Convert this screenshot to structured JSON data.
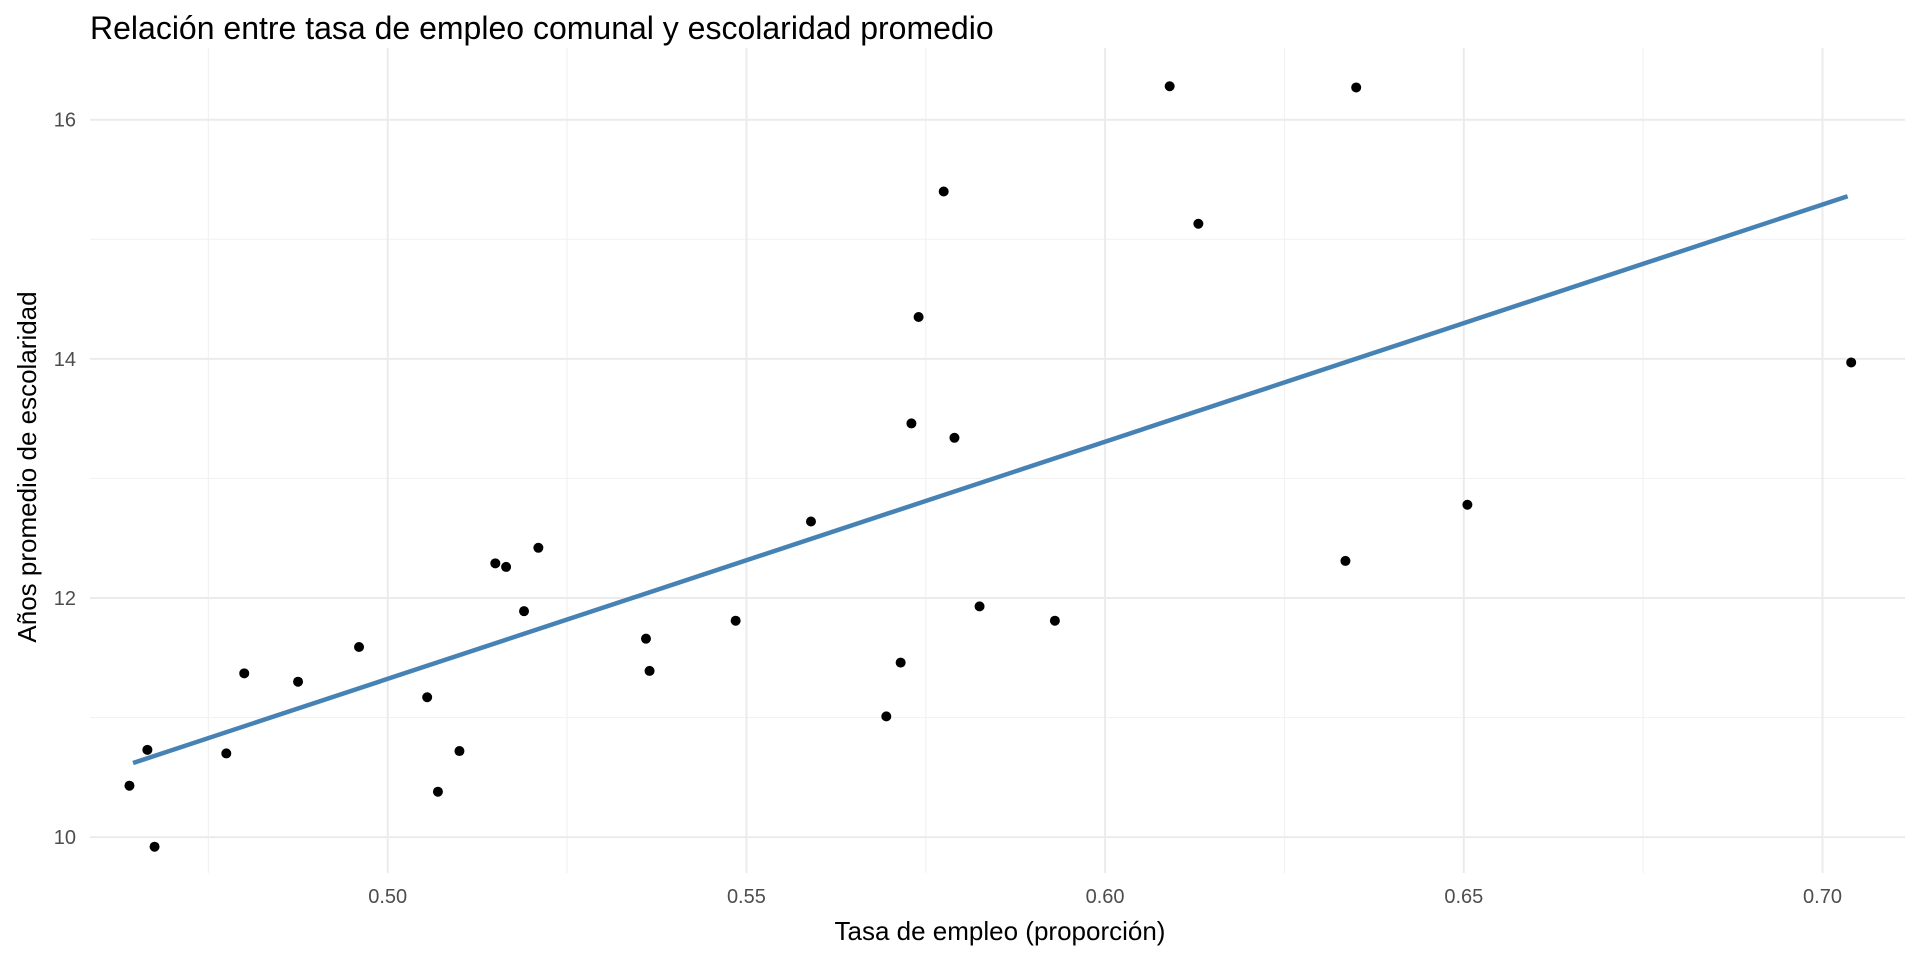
{
  "chart_data": {
    "type": "scatter",
    "title": "Relación entre tasa de empleo comunal y escolaridad promedio",
    "xlabel": "Tasa de empleo (proporción)",
    "ylabel": "Años promedio de escolaridad",
    "xlim": [
      0.4585,
      0.7115
    ],
    "ylim": [
      9.7,
      16.6
    ],
    "x_ticks": [
      0.5,
      0.55,
      0.6,
      0.65,
      0.7
    ],
    "x_tick_labels": [
      "0.50",
      "0.55",
      "0.60",
      "0.65",
      "0.70"
    ],
    "y_ticks": [
      10,
      12,
      14,
      16
    ],
    "y_tick_labels": [
      "10",
      "12",
      "14",
      "16"
    ],
    "grid": true,
    "point_color": "#000000",
    "trend_color": "#4682b4",
    "trend_line": {
      "x": [
        0.4645,
        0.7035
      ],
      "y": [
        10.62,
        15.36
      ]
    },
    "points": [
      {
        "x": 0.464,
        "y": 10.43
      },
      {
        "x": 0.4665,
        "y": 10.73
      },
      {
        "x": 0.4675,
        "y": 9.92
      },
      {
        "x": 0.4775,
        "y": 10.7
      },
      {
        "x": 0.48,
        "y": 11.37
      },
      {
        "x": 0.4875,
        "y": 11.3
      },
      {
        "x": 0.496,
        "y": 11.59
      },
      {
        "x": 0.5055,
        "y": 11.17
      },
      {
        "x": 0.507,
        "y": 10.38
      },
      {
        "x": 0.51,
        "y": 10.72
      },
      {
        "x": 0.515,
        "y": 12.29
      },
      {
        "x": 0.5165,
        "y": 12.26
      },
      {
        "x": 0.519,
        "y": 11.89
      },
      {
        "x": 0.521,
        "y": 12.42
      },
      {
        "x": 0.536,
        "y": 11.66
      },
      {
        "x": 0.5365,
        "y": 11.39
      },
      {
        "x": 0.5485,
        "y": 11.81
      },
      {
        "x": 0.559,
        "y": 12.64
      },
      {
        "x": 0.5695,
        "y": 11.01
      },
      {
        "x": 0.5715,
        "y": 11.46
      },
      {
        "x": 0.573,
        "y": 13.46
      },
      {
        "x": 0.574,
        "y": 14.35
      },
      {
        "x": 0.5775,
        "y": 15.4
      },
      {
        "x": 0.579,
        "y": 13.34
      },
      {
        "x": 0.5825,
        "y": 11.93
      },
      {
        "x": 0.593,
        "y": 11.81
      },
      {
        "x": 0.609,
        "y": 16.28
      },
      {
        "x": 0.613,
        "y": 15.13
      },
      {
        "x": 0.6335,
        "y": 12.31
      },
      {
        "x": 0.635,
        "y": 16.27
      },
      {
        "x": 0.6505,
        "y": 12.78
      },
      {
        "x": 0.704,
        "y": 13.97
      }
    ]
  }
}
